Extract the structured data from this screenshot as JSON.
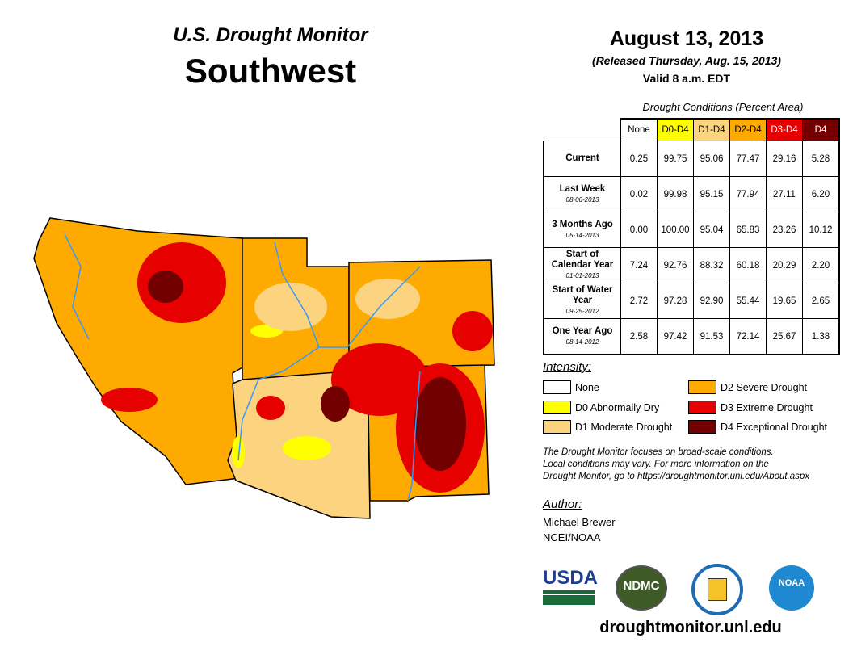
{
  "header": {
    "product": "U.S. Drought Monitor",
    "region": "Southwest",
    "date": "August 13, 2013",
    "released": "(Released Thursday, Aug. 15, 2013)",
    "valid": "Valid 8 a.m. EDT"
  },
  "table": {
    "caption": "Drought Conditions (Percent Area)",
    "columns": [
      "None",
      "D0-D4",
      "D1-D4",
      "D2-D4",
      "D3-D4",
      "D4"
    ],
    "rows": [
      {
        "label": "Current",
        "date": "",
        "values": [
          "0.25",
          "99.75",
          "95.06",
          "77.47",
          "29.16",
          "5.28"
        ]
      },
      {
        "label": "Last Week",
        "date": "08-06-2013",
        "values": [
          "0.02",
          "99.98",
          "95.15",
          "77.94",
          "27.11",
          "6.20"
        ]
      },
      {
        "label": "3 Months Ago",
        "date": "05-14-2013",
        "values": [
          "0.00",
          "100.00",
          "95.04",
          "65.83",
          "23.26",
          "10.12"
        ]
      },
      {
        "label": "Start of Calendar Year",
        "date": "01-01-2013",
        "values": [
          "7.24",
          "92.76",
          "88.32",
          "60.18",
          "20.29",
          "2.20"
        ]
      },
      {
        "label": "Start of Water Year",
        "date": "09-25-2012",
        "values": [
          "2.72",
          "97.28",
          "92.90",
          "55.44",
          "19.65",
          "2.65"
        ]
      },
      {
        "label": "One Year Ago",
        "date": "08-14-2012",
        "values": [
          "2.58",
          "97.42",
          "91.53",
          "72.14",
          "25.67",
          "1.38"
        ]
      }
    ]
  },
  "colors": {
    "none": "#ffffff",
    "d0": "#ffff00",
    "d1": "#fcd37f",
    "d2": "#ffaa00",
    "d3": "#e60000",
    "d4": "#730000"
  },
  "legend": {
    "title": "Intensity:",
    "items": [
      "None",
      "D0 Abnormally Dry",
      "D1 Moderate Drought",
      "D2 Severe Drought",
      "D3 Extreme Drought",
      "D4 Exceptional Drought"
    ]
  },
  "note": [
    "The Drought Monitor focuses on broad-scale conditions.",
    "Local conditions may vary. For more information on the",
    "Drought Monitor, go to https://droughtmonitor.unl.edu/About.aspx"
  ],
  "author": {
    "label": "Author:",
    "name": "Michael Brewer",
    "org": "NCEI/NOAA"
  },
  "logos": {
    "usda": "USDA",
    "ndmc": "NDMC",
    "noaa": "NOAA"
  },
  "footer": {
    "url": "droughtmonitor.unl.edu"
  }
}
